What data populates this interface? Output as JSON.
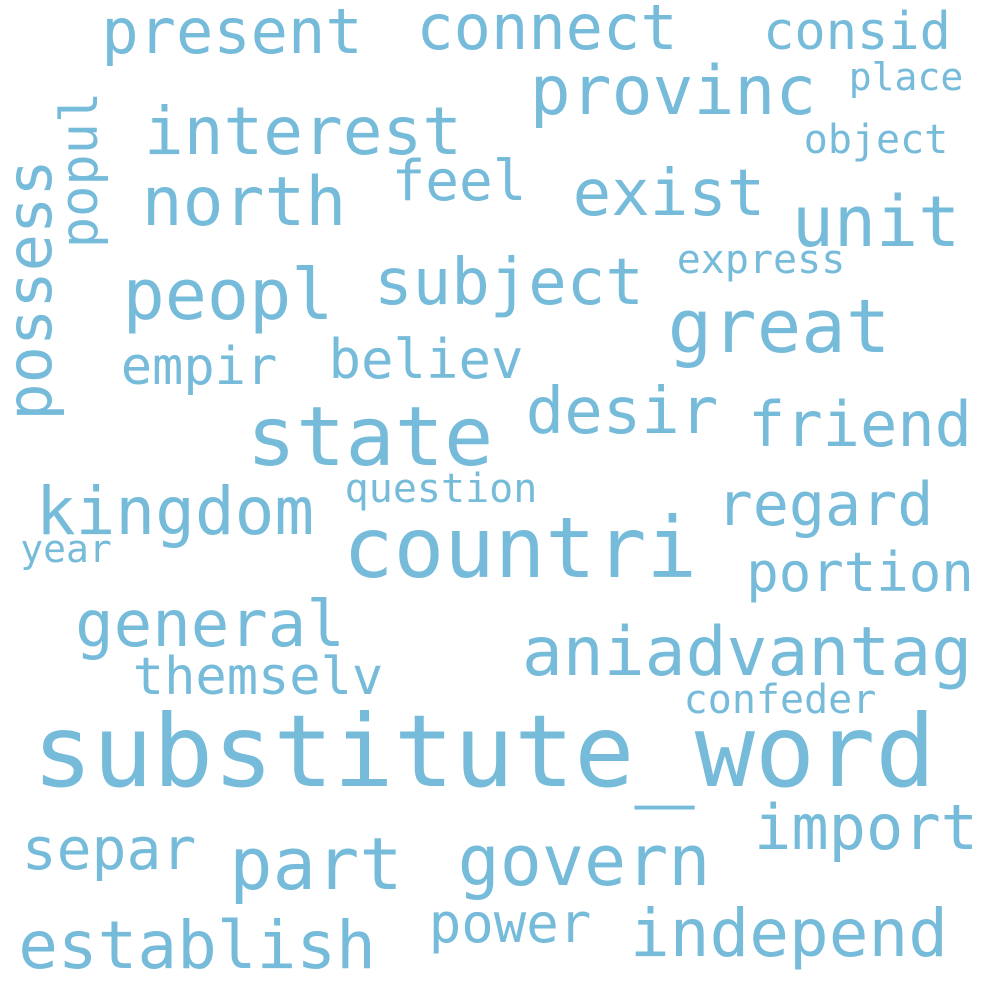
{
  "wordcloud": {
    "color": "#76bbd9",
    "background": "#ffffff",
    "words": [
      "substitute_word",
      "countri",
      "state",
      "aniadvantag",
      "great",
      "provinc",
      "kingdom",
      "possess",
      "general",
      "part",
      "govern",
      "establish",
      "independ",
      "north",
      "peopl",
      "interest",
      "subject",
      "exist",
      "unit",
      "present",
      "connect",
      "desir",
      "friend",
      "regard",
      "portion",
      "import",
      "separ",
      "believ",
      "empir",
      "consid",
      "popul",
      "feel",
      "themselv",
      "power",
      "confeder",
      "question",
      "express",
      "object",
      "place",
      "year"
    ]
  }
}
